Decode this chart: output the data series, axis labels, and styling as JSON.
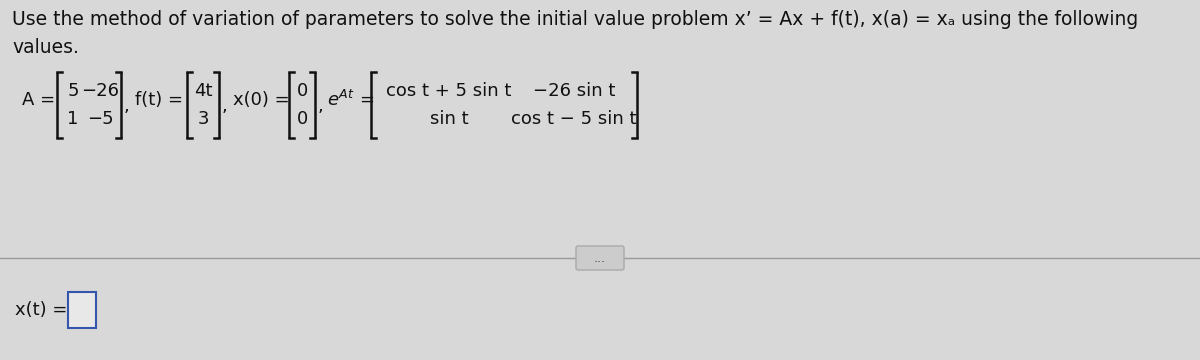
{
  "bg_color": "#d8d8d8",
  "title_line1": "Use the method of variation of parameters to solve the initial value problem x’ = Ax + f(t), x(a) = xₐ using the following",
  "title_line2": "values.",
  "title_fontsize": 13.5,
  "title_color": "#111111",
  "equation_color": "#111111",
  "font_size_matrix": 13,
  "separator_color": "#999999",
  "dot_button_color": "#cccccc",
  "mat_A": [
    [
      "5",
      "−26"
    ],
    [
      "1",
      "−5"
    ]
  ],
  "mat_ft": [
    [
      "4t"
    ],
    [
      "3"
    ]
  ],
  "mat_x0": [
    [
      "0"
    ],
    [
      "0"
    ]
  ],
  "mat_eAt_r1": [
    "cos t + 5 sin t",
    "−26 sin t"
  ],
  "mat_eAt_r2": [
    "sin t",
    "cos t − 5 sin t"
  ],
  "answer_box_border": "#3355aa"
}
